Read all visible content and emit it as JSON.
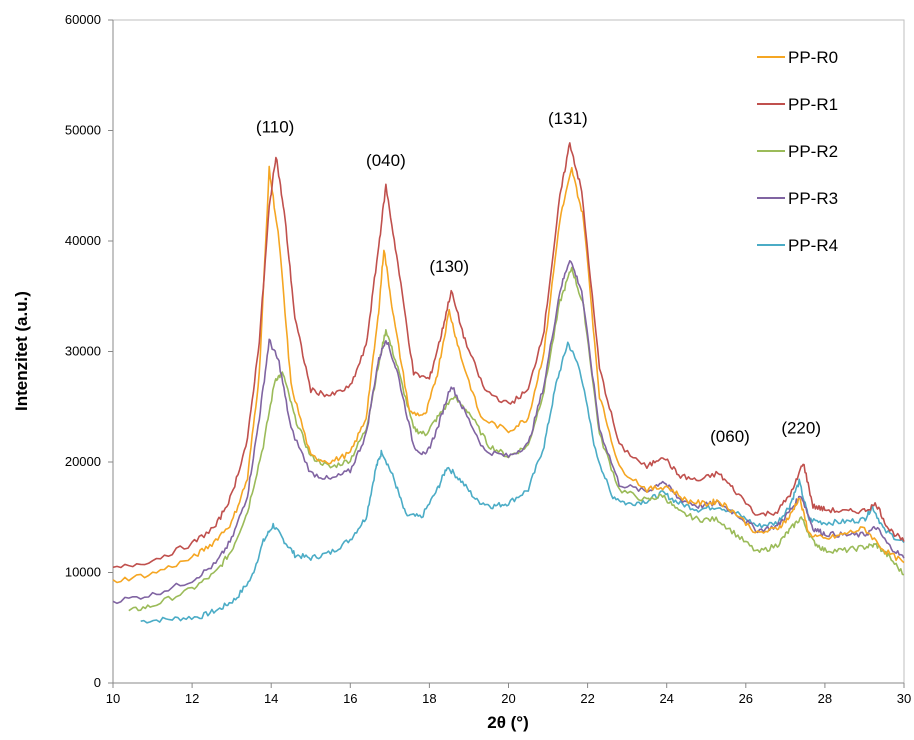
{
  "chart_data": {
    "type": "line",
    "title": "",
    "xlabel": "2θ (°)",
    "ylabel": "Intenzitet (a.u.)",
    "xlim": [
      10,
      30
    ],
    "ylim": [
      0,
      60000
    ],
    "xticks": [
      10,
      12,
      14,
      16,
      18,
      20,
      22,
      24,
      26,
      28,
      30
    ],
    "yticks": [
      0,
      10000,
      20000,
      30000,
      40000,
      50000,
      60000
    ],
    "grid": false,
    "legend_position": "top-right",
    "annotations": [
      {
        "text": "(110)",
        "x": 14.1,
        "y": 49800
      },
      {
        "text": "(040)",
        "x": 16.9,
        "y": 46800
      },
      {
        "text": "(130)",
        "x": 18.5,
        "y": 37200
      },
      {
        "text": "(131)",
        "x": 21.5,
        "y": 50600
      },
      {
        "text": "(060)",
        "x": 25.6,
        "y": 21800
      },
      {
        "text": "(220)",
        "x": 27.4,
        "y": 22600
      }
    ],
    "series": [
      {
        "name": "PP-R0",
        "color": "#f5a623",
        "points": [
          [
            10,
            9200
          ],
          [
            11,
            9900
          ],
          [
            12,
            11300
          ],
          [
            12.5,
            12600
          ],
          [
            13,
            14500
          ],
          [
            13.4,
            18500
          ],
          [
            13.7,
            28000
          ],
          [
            13.95,
            46500
          ],
          [
            14.2,
            40000
          ],
          [
            14.5,
            27000
          ],
          [
            15,
            20500
          ],
          [
            15.5,
            20000
          ],
          [
            16,
            20800
          ],
          [
            16.4,
            24000
          ],
          [
            16.7,
            33000
          ],
          [
            16.85,
            39300
          ],
          [
            17.1,
            33000
          ],
          [
            17.5,
            24500
          ],
          [
            17.9,
            24200
          ],
          [
            18.2,
            28000
          ],
          [
            18.5,
            33700
          ],
          [
            18.8,
            29500
          ],
          [
            19.3,
            24000
          ],
          [
            20,
            22800
          ],
          [
            20.5,
            24000
          ],
          [
            20.9,
            30000
          ],
          [
            21.3,
            42000
          ],
          [
            21.6,
            46500
          ],
          [
            21.9,
            42000
          ],
          [
            22.3,
            26000
          ],
          [
            22.8,
            19500
          ],
          [
            23.5,
            17500
          ],
          [
            24,
            17800
          ],
          [
            24.5,
            16500
          ],
          [
            25,
            16200
          ],
          [
            25.3,
            16500
          ],
          [
            25.7,
            15500
          ],
          [
            26.3,
            13500
          ],
          [
            26.8,
            14000
          ],
          [
            27.1,
            15000
          ],
          [
            27.35,
            16800
          ],
          [
            27.6,
            13500
          ],
          [
            28,
            13000
          ],
          [
            28.5,
            13500
          ],
          [
            29,
            14000
          ],
          [
            29.5,
            12000
          ],
          [
            30,
            10900
          ]
        ]
      },
      {
        "name": "PP-R1",
        "color": "#c0504d",
        "points": [
          [
            10,
            10300
          ],
          [
            11,
            11100
          ],
          [
            12,
            12600
          ],
          [
            12.6,
            14200
          ],
          [
            13,
            17000
          ],
          [
            13.4,
            22000
          ],
          [
            13.7,
            31000
          ],
          [
            13.95,
            43000
          ],
          [
            14.12,
            47800
          ],
          [
            14.35,
            42000
          ],
          [
            14.6,
            33000
          ],
          [
            15,
            26500
          ],
          [
            15.5,
            26000
          ],
          [
            16,
            26800
          ],
          [
            16.4,
            30500
          ],
          [
            16.7,
            39000
          ],
          [
            16.9,
            45000
          ],
          [
            17.2,
            38000
          ],
          [
            17.6,
            28000
          ],
          [
            18,
            27500
          ],
          [
            18.3,
            31500
          ],
          [
            18.55,
            35500
          ],
          [
            18.9,
            31000
          ],
          [
            19.4,
            26500
          ],
          [
            20,
            25200
          ],
          [
            20.5,
            26500
          ],
          [
            20.9,
            32000
          ],
          [
            21.3,
            44000
          ],
          [
            21.55,
            48900
          ],
          [
            21.85,
            44500
          ],
          [
            22.3,
            28500
          ],
          [
            22.8,
            21500
          ],
          [
            23.5,
            19500
          ],
          [
            23.9,
            20600
          ],
          [
            24.3,
            18800
          ],
          [
            24.8,
            18300
          ],
          [
            25.3,
            19000
          ],
          [
            25.7,
            17500
          ],
          [
            26.3,
            15200
          ],
          [
            26.8,
            15500
          ],
          [
            27.2,
            17500
          ],
          [
            27.45,
            20000
          ],
          [
            27.7,
            16000
          ],
          [
            28,
            15700
          ],
          [
            28.5,
            15500
          ],
          [
            29,
            15600
          ],
          [
            29.3,
            16200
          ],
          [
            29.6,
            14000
          ],
          [
            30,
            12800
          ]
        ]
      },
      {
        "name": "PP-R2",
        "color": "#9bbb59",
        "points": [
          [
            10.4,
            6500
          ],
          [
            11,
            7000
          ],
          [
            12,
            8500
          ],
          [
            12.6,
            10000
          ],
          [
            13,
            12000
          ],
          [
            13.4,
            15500
          ],
          [
            13.8,
            21500
          ],
          [
            14.1,
            27500
          ],
          [
            14.3,
            28000
          ],
          [
            14.6,
            24000
          ],
          [
            15,
            20500
          ],
          [
            15.5,
            19500
          ],
          [
            16,
            20200
          ],
          [
            16.4,
            23000
          ],
          [
            16.7,
            28500
          ],
          [
            16.9,
            32000
          ],
          [
            17.2,
            28500
          ],
          [
            17.6,
            23000
          ],
          [
            17.9,
            22500
          ],
          [
            18.2,
            24000
          ],
          [
            18.6,
            25900
          ],
          [
            19,
            24500
          ],
          [
            19.5,
            21500
          ],
          [
            20,
            20500
          ],
          [
            20.5,
            21500
          ],
          [
            20.9,
            26500
          ],
          [
            21.3,
            34500
          ],
          [
            21.6,
            37600
          ],
          [
            21.9,
            34000
          ],
          [
            22.3,
            22500
          ],
          [
            22.8,
            17500
          ],
          [
            23.5,
            16500
          ],
          [
            23.9,
            17000
          ],
          [
            24.3,
            15500
          ],
          [
            24.8,
            14800
          ],
          [
            25.3,
            14800
          ],
          [
            25.8,
            13300
          ],
          [
            26.3,
            11800
          ],
          [
            26.8,
            12500
          ],
          [
            27.1,
            13800
          ],
          [
            27.4,
            15000
          ],
          [
            27.7,
            12800
          ],
          [
            28,
            12000
          ],
          [
            28.5,
            12000
          ],
          [
            29,
            12300
          ],
          [
            29.3,
            12500
          ],
          [
            29.6,
            11500
          ],
          [
            30,
            9800
          ]
        ]
      },
      {
        "name": "PP-R3",
        "color": "#8064a2",
        "points": [
          [
            10,
            7400
          ],
          [
            11,
            8000
          ],
          [
            12,
            9300
          ],
          [
            12.6,
            10800
          ],
          [
            13,
            13000
          ],
          [
            13.4,
            17000
          ],
          [
            13.7,
            24000
          ],
          [
            13.95,
            31000
          ],
          [
            14.2,
            29000
          ],
          [
            14.5,
            23000
          ],
          [
            15,
            19000
          ],
          [
            15.5,
            18400
          ],
          [
            16,
            19200
          ],
          [
            16.4,
            22500
          ],
          [
            16.7,
            29000
          ],
          [
            16.9,
            31200
          ],
          [
            17.2,
            28000
          ],
          [
            17.6,
            21500
          ],
          [
            17.9,
            20500
          ],
          [
            18.2,
            23000
          ],
          [
            18.55,
            27000
          ],
          [
            18.9,
            24500
          ],
          [
            19.4,
            21000
          ],
          [
            20,
            20500
          ],
          [
            20.5,
            21600
          ],
          [
            20.9,
            27000
          ],
          [
            21.3,
            35500
          ],
          [
            21.55,
            38400
          ],
          [
            21.85,
            35500
          ],
          [
            22.3,
            23000
          ],
          [
            22.8,
            18000
          ],
          [
            23.5,
            17300
          ],
          [
            23.9,
            18300
          ],
          [
            24.3,
            16700
          ],
          [
            24.8,
            16000
          ],
          [
            25.3,
            16300
          ],
          [
            25.8,
            15200
          ],
          [
            26.3,
            13800
          ],
          [
            26.8,
            14200
          ],
          [
            27.1,
            15500
          ],
          [
            27.4,
            17000
          ],
          [
            27.7,
            14000
          ],
          [
            28,
            13500
          ],
          [
            28.5,
            13400
          ],
          [
            29,
            13400
          ],
          [
            29.3,
            14100
          ],
          [
            29.6,
            12500
          ],
          [
            30,
            11300
          ]
        ]
      },
      {
        "name": "PP-R4",
        "color": "#4bacc6",
        "points": [
          [
            10.7,
            5600
          ],
          [
            11.5,
            5800
          ],
          [
            12.2,
            6000
          ],
          [
            12.7,
            6700
          ],
          [
            13.1,
            7600
          ],
          [
            13.5,
            9500
          ],
          [
            13.8,
            12800
          ],
          [
            14.05,
            14300
          ],
          [
            14.3,
            13000
          ],
          [
            14.6,
            11600
          ],
          [
            15,
            11300
          ],
          [
            15.5,
            11800
          ],
          [
            16,
            13000
          ],
          [
            16.4,
            15000
          ],
          [
            16.65,
            19500
          ],
          [
            16.8,
            21000
          ],
          [
            17.1,
            18500
          ],
          [
            17.4,
            15200
          ],
          [
            17.8,
            15000
          ],
          [
            18.2,
            17500
          ],
          [
            18.45,
            19600
          ],
          [
            18.8,
            18300
          ],
          [
            19.2,
            16500
          ],
          [
            19.6,
            16000
          ],
          [
            20,
            16300
          ],
          [
            20.5,
            17500
          ],
          [
            20.9,
            21500
          ],
          [
            21.2,
            27000
          ],
          [
            21.5,
            30800
          ],
          [
            21.8,
            28500
          ],
          [
            22.2,
            21000
          ],
          [
            22.6,
            17000
          ],
          [
            23,
            16200
          ],
          [
            23.5,
            16500
          ],
          [
            23.9,
            17200
          ],
          [
            24.3,
            16300
          ],
          [
            24.8,
            15700
          ],
          [
            25.3,
            16000
          ],
          [
            25.8,
            15300
          ],
          [
            26.3,
            14200
          ],
          [
            26.8,
            14500
          ],
          [
            27.1,
            16000
          ],
          [
            27.35,
            18200
          ],
          [
            27.6,
            14800
          ],
          [
            28,
            14500
          ],
          [
            28.5,
            14600
          ],
          [
            29,
            14800
          ],
          [
            29.2,
            16000
          ],
          [
            29.5,
            13800
          ],
          [
            30,
            12700
          ]
        ]
      }
    ]
  }
}
